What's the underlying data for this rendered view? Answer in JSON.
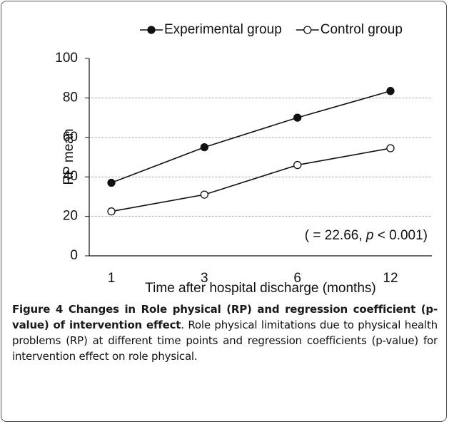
{
  "chart_data": {
    "type": "line",
    "categories": [
      "1",
      "3",
      "6",
      "12"
    ],
    "series": [
      {
        "name": "Experimental group",
        "color": "#111111",
        "marker": "filled",
        "values": [
          37,
          55,
          70,
          83.5
        ]
      },
      {
        "name": "Control group",
        "color": "#111111",
        "marker": "open",
        "values": [
          22.5,
          31,
          46,
          54.5
        ]
      }
    ],
    "ylabel": "RP mean",
    "xlabel": "Time after hospital discharge (months)",
    "annotation": [
      "(   = 22.66, ",
      "p",
      " < 0.001)"
    ],
    "ylim": [
      0,
      100
    ],
    "yticks": [
      0,
      20,
      40,
      60,
      80,
      100
    ],
    "grid": true,
    "legend": "top"
  },
  "caption": {
    "title": "Figure 4 Changes in Role physical (RP) and regression coefficient (p-value) of intervention effect",
    "text": ". Role physical limitations due to physical health problems (RP) at different time points and regression coefficients (p-value) for intervention effect on role physical."
  }
}
